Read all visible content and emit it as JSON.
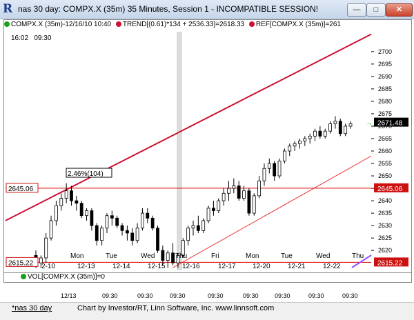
{
  "window": {
    "title": "nas 30 day: COMPX.X (35m) 35 Minutes, Session 1 - INCOMPATIBLE SESSION!",
    "icon": "R",
    "minimize": "—",
    "maximize": "□",
    "close": "✕"
  },
  "legend": {
    "item1": "COMPX.X (35m)-12/16/10 10:40",
    "item2": "TREND[(0.61)*134 + 2536.33]=2618.33",
    "item3": "REF[COMPX.X (35m)]=261"
  },
  "time_info": {
    "time": "16:02",
    "session": "09:30"
  },
  "price_axis": {
    "labels": [
      "2700",
      "2695",
      "2690",
      "2685",
      "2680",
      "2675",
      "2670",
      "2665",
      "2660",
      "2655",
      "2650",
      "2645",
      "2640",
      "2635",
      "2630",
      "2625",
      "2620"
    ],
    "current_price": "2671.48",
    "ref_high": "2645.06",
    "ref_low": "2615.22"
  },
  "left_labels": {
    "ref_high": "2645.06",
    "ref_low": "2615.22"
  },
  "annotation": "2.46%(104)",
  "days": [
    {
      "day": "Mon",
      "date": "12-13"
    },
    {
      "day": "Tue",
      "date": "12-14"
    },
    {
      "day": "Wed",
      "date": "12-15"
    },
    {
      "day": "Thu",
      "date": "12-16"
    },
    {
      "day": "Fri",
      "date": "12-17"
    },
    {
      "day": "Mon",
      "date": "12-20"
    },
    {
      "day": "Tue",
      "date": "12-21"
    },
    {
      "day": "Wed",
      "date": "12-22"
    },
    {
      "day": "Thu",
      "date": ""
    }
  ],
  "first_date": "2-10",
  "volume": {
    "legend": "VOL[COMPX.X (35m)]=0"
  },
  "xaxis": {
    "first": "12/13",
    "ticks": [
      "09:30",
      "09:30",
      "09:30",
      "09:30",
      "09:30",
      "09:30",
      "09:30",
      "09:30",
      "09:30"
    ]
  },
  "footer": {
    "tab": "*nas 30 day",
    "credit": "Chart by Investor/RT, Linn Software, Inc. www.linnsoft.com"
  },
  "colors": {
    "trend": "#cc1133",
    "ref": "#dd0000",
    "candle": "#000000",
    "current": "#1a9a1a"
  },
  "chart_data": {
    "type": "candlestick",
    "ylim": [
      2612,
      2708
    ],
    "current_price": 2671.48,
    "ref_high": 2645.06,
    "ref_low": 2615.22,
    "annotation_pct": "2.46%(104)",
    "trend_upper": {
      "start": 2632,
      "end": 2707
    },
    "trend_lower": {
      "start": 2613,
      "end": 2658
    },
    "candles": [
      [
        2618,
        2620,
        2613,
        2615
      ],
      [
        2615,
        2618,
        2613,
        2617
      ],
      [
        2617,
        2627,
        2615,
        2625
      ],
      [
        2625,
        2634,
        2624,
        2632
      ],
      [
        2632,
        2640,
        2630,
        2638
      ],
      [
        2638,
        2643,
        2636,
        2641
      ],
      [
        2641,
        2647,
        2639,
        2644
      ],
      [
        2644,
        2646,
        2638,
        2640
      ],
      [
        2640,
        2642,
        2636,
        2639
      ],
      [
        2639,
        2640,
        2633,
        2634
      ],
      [
        2634,
        2637,
        2632,
        2636
      ],
      [
        2636,
        2637,
        2628,
        2630
      ],
      [
        2630,
        2631,
        2622,
        2624
      ],
      [
        2624,
        2630,
        2622,
        2629
      ],
      [
        2629,
        2635,
        2627,
        2634
      ],
      [
        2634,
        2636,
        2630,
        2633
      ],
      [
        2633,
        2634,
        2629,
        2630
      ],
      [
        2630,
        2631,
        2626,
        2628
      ],
      [
        2628,
        2630,
        2624,
        2627
      ],
      [
        2627,
        2629,
        2622,
        2624
      ],
      [
        2624,
        2631,
        2623,
        2629
      ],
      [
        2629,
        2637,
        2628,
        2635
      ],
      [
        2635,
        2637,
        2631,
        2633
      ],
      [
        2633,
        2634,
        2628,
        2629
      ],
      [
        2629,
        2630,
        2619,
        2620
      ],
      [
        2620,
        2622,
        2614,
        2616
      ],
      [
        2616,
        2620,
        2613,
        2619
      ],
      [
        2619,
        2623,
        2614,
        2615
      ],
      [
        2615,
        2619,
        2613,
        2618
      ],
      [
        2618,
        2625,
        2617,
        2624
      ],
      [
        2624,
        2630,
        2622,
        2629
      ],
      [
        2629,
        2632,
        2626,
        2630
      ],
      [
        2630,
        2634,
        2627,
        2628
      ],
      [
        2628,
        2633,
        2627,
        2632
      ],
      [
        2632,
        2638,
        2631,
        2637
      ],
      [
        2637,
        2640,
        2634,
        2636
      ],
      [
        2636,
        2641,
        2635,
        2640
      ],
      [
        2640,
        2645,
        2638,
        2643
      ],
      [
        2643,
        2648,
        2640,
        2645
      ],
      [
        2645,
        2649,
        2643,
        2646
      ],
      [
        2646,
        2648,
        2640,
        2641
      ],
      [
        2641,
        2646,
        2640,
        2644
      ],
      [
        2644,
        2645,
        2634,
        2635
      ],
      [
        2635,
        2643,
        2634,
        2642
      ],
      [
        2642,
        2650,
        2641,
        2648
      ],
      [
        2648,
        2655,
        2646,
        2653
      ],
      [
        2653,
        2657,
        2651,
        2655
      ],
      [
        2655,
        2656,
        2648,
        2650
      ],
      [
        2650,
        2657,
        2649,
        2656
      ],
      [
        2656,
        2661,
        2655,
        2660
      ],
      [
        2660,
        2663,
        2658,
        2662
      ],
      [
        2662,
        2664,
        2660,
        2663
      ],
      [
        2663,
        2665,
        2661,
        2664
      ],
      [
        2664,
        2666,
        2662,
        2665
      ],
      [
        2665,
        2667,
        2663,
        2666
      ],
      [
        2666,
        2669,
        2664,
        2668
      ],
      [
        2668,
        2670,
        2665,
        2666
      ],
      [
        2666,
        2669,
        2665,
        2668
      ],
      [
        2668,
        2672,
        2667,
        2671
      ],
      [
        2671,
        2674,
        2669,
        2672
      ],
      [
        2672,
        2673,
        2666,
        2667
      ],
      [
        2667,
        2671,
        2666,
        2670
      ],
      [
        2670,
        2672,
        2669,
        2671
      ]
    ]
  }
}
